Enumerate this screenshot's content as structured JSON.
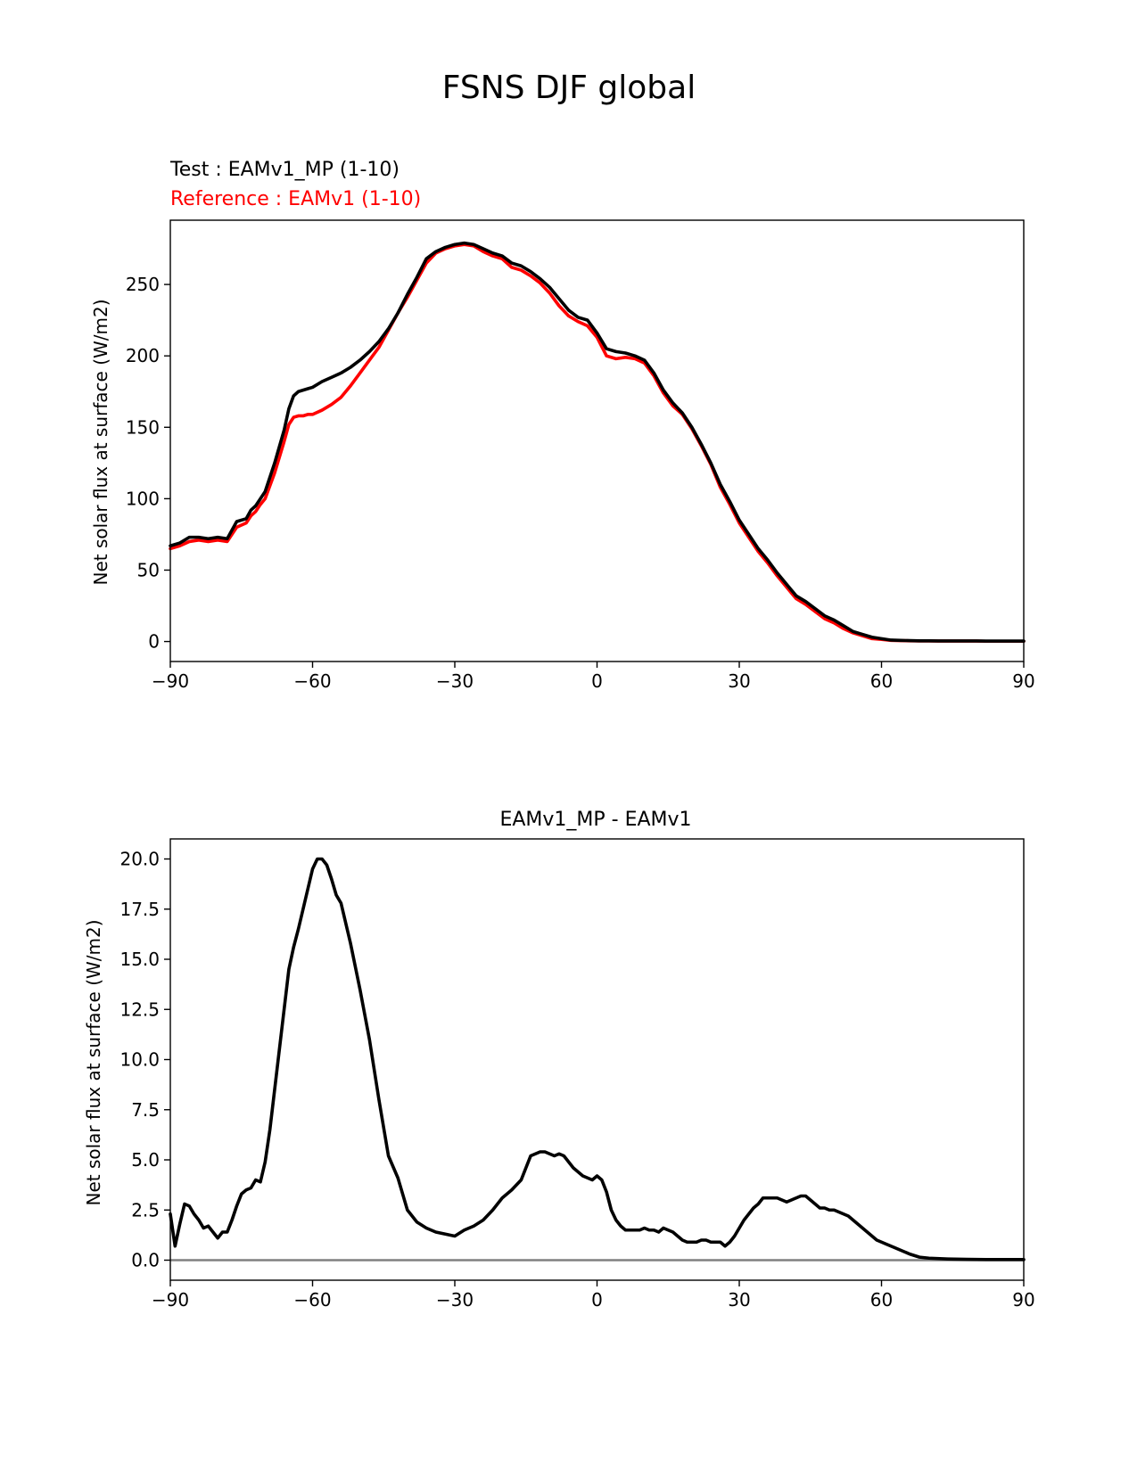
{
  "figure_title": "FSNS DJF global",
  "chart_data": [
    {
      "type": "line",
      "title_test": "Test : EAMv1_MP (1-10)",
      "title_ref": "Reference : EAMv1 (1-10)",
      "xlabel": "",
      "ylabel": "Net solar flux at surface (W/m2)",
      "xlim": [
        -90,
        90
      ],
      "ylim": [
        -14,
        295
      ],
      "xticks": [
        -90,
        -60,
        -30,
        0,
        30,
        60,
        90
      ],
      "xtick_labels": [
        "−90",
        "−60",
        "−30",
        "0",
        "30",
        "60",
        "90"
      ],
      "yticks": [
        0,
        50,
        100,
        150,
        200,
        250
      ],
      "ytick_labels": [
        "0",
        "50",
        "100",
        "150",
        "200",
        "250"
      ],
      "series": [
        {
          "name": "EAMv1_MP",
          "color": "#000000",
          "x": [
            -90,
            -88,
            -86,
            -84,
            -82,
            -80,
            -78,
            -76,
            -74,
            -73,
            -72,
            -71,
            -70,
            -68,
            -66,
            -65,
            -64,
            -63,
            -62,
            -61,
            -60,
            -58,
            -56,
            -54,
            -52,
            -50,
            -48,
            -46,
            -44,
            -42,
            -40,
            -38,
            -36,
            -34,
            -32,
            -30,
            -28,
            -26,
            -24,
            -22,
            -20,
            -18,
            -16,
            -14,
            -12,
            -10,
            -8,
            -6,
            -4,
            -2,
            0,
            2,
            4,
            6,
            8,
            10,
            12,
            14,
            16,
            18,
            20,
            22,
            24,
            26,
            28,
            30,
            32,
            34,
            36,
            38,
            40,
            42,
            44,
            46,
            48,
            50,
            52,
            54,
            56,
            58,
            60,
            62,
            64,
            66,
            68,
            70,
            72,
            74,
            76,
            78,
            80,
            82,
            84,
            86,
            88,
            90
          ],
          "y": [
            67,
            69,
            73,
            73,
            72,
            73,
            72,
            84,
            86,
            92,
            95,
            100,
            105,
            125,
            148,
            163,
            172,
            175,
            176,
            177,
            178,
            182,
            185,
            188,
            192,
            197,
            203,
            210,
            219,
            230,
            243,
            255,
            268,
            273,
            276,
            278,
            279,
            278,
            275,
            272,
            270,
            265,
            263,
            259,
            254,
            248,
            240,
            232,
            227,
            225,
            216,
            205,
            203,
            202,
            200,
            197,
            188,
            176,
            167,
            160,
            150,
            138,
            125,
            110,
            98,
            85,
            75,
            65,
            57,
            48,
            40,
            32,
            28,
            23,
            18,
            15,
            11,
            7,
            5,
            3,
            2,
            1,
            0.8,
            0.6,
            0.5,
            0.5,
            0.4,
            0.4,
            0.4,
            0.4,
            0.4,
            0.3,
            0.3,
            0.3,
            0.3,
            0.3
          ]
        },
        {
          "name": "EAMv1",
          "color": "#ff0000",
          "x": [
            -90,
            -88,
            -86,
            -84,
            -82,
            -80,
            -78,
            -76,
            -74,
            -73,
            -72,
            -71,
            -70,
            -68,
            -66,
            -65,
            -64,
            -63,
            -62,
            -61,
            -60,
            -58,
            -56,
            -54,
            -52,
            -50,
            -48,
            -46,
            -44,
            -42,
            -40,
            -38,
            -36,
            -34,
            -32,
            -30,
            -28,
            -26,
            -24,
            -22,
            -20,
            -18,
            -16,
            -14,
            -12,
            -10,
            -8,
            -6,
            -4,
            -2,
            0,
            2,
            4,
            6,
            8,
            10,
            12,
            14,
            16,
            18,
            20,
            22,
            24,
            26,
            28,
            30,
            32,
            34,
            36,
            38,
            40,
            42,
            44,
            46,
            48,
            50,
            52,
            54,
            56,
            58,
            60,
            62,
            64,
            66,
            68,
            70,
            72,
            74,
            76,
            78,
            80,
            82,
            84,
            86,
            88,
            90
          ],
          "y": [
            65,
            67,
            70,
            71,
            70,
            71,
            70,
            80,
            83,
            88,
            91,
            96,
            100,
            118,
            140,
            152,
            157,
            158,
            158,
            159,
            159,
            162,
            166,
            171,
            179,
            188,
            197,
            206,
            218,
            230,
            241,
            253,
            265,
            272,
            275,
            277,
            278,
            277,
            273,
            270,
            268,
            262,
            260,
            256,
            251,
            244,
            235,
            228,
            224,
            221,
            213,
            200,
            198,
            199,
            198,
            195,
            186,
            174,
            165,
            159,
            149,
            137,
            124,
            108,
            96,
            83,
            73,
            63,
            55,
            46,
            38,
            30,
            26,
            21,
            16,
            13,
            9,
            6,
            4,
            2,
            1.5,
            0.8,
            0.6,
            0.5,
            0.4,
            0.4,
            0.3,
            0.3,
            0.3,
            0.3,
            0.3,
            0.2,
            0.2,
            0.2,
            0.2,
            0.2
          ]
        }
      ]
    },
    {
      "type": "line",
      "title": "EAMv1_MP - EAMv1",
      "xlabel": "",
      "ylabel": "Net solar flux at surface (W/m2)",
      "xlim": [
        -90,
        90
      ],
      "ylim": [
        -1,
        21
      ],
      "xticks": [
        -90,
        -60,
        -30,
        0,
        30,
        60,
        90
      ],
      "xtick_labels": [
        "−90",
        "−60",
        "−30",
        "0",
        "30",
        "60",
        "90"
      ],
      "yticks": [
        0,
        2.5,
        5,
        7.5,
        10,
        12.5,
        15,
        17.5,
        20
      ],
      "ytick_labels": [
        "0.0",
        "2.5",
        "5.0",
        "7.5",
        "10.0",
        "12.5",
        "15.0",
        "17.5",
        "20.0"
      ],
      "zero_line": {
        "y": 0,
        "color": "#808080"
      },
      "series": [
        {
          "name": "EAMv1_MP - EAMv1",
          "color": "#000000",
          "x": [
            -90,
            -89,
            -88,
            -87,
            -86,
            -85,
            -84,
            -83,
            -82,
            -81,
            -80,
            -79,
            -78,
            -77,
            -76,
            -75,
            -74,
            -73,
            -72,
            -71,
            -70,
            -69,
            -68,
            -67,
            -66,
            -65,
            -64,
            -63,
            -62,
            -61,
            -60,
            -59,
            -58,
            -57,
            -56,
            -55,
            -54,
            -52,
            -50,
            -48,
            -46,
            -44,
            -42,
            -40,
            -38,
            -36,
            -34,
            -32,
            -30,
            -28,
            -26,
            -24,
            -22,
            -20,
            -18,
            -16,
            -14,
            -12,
            -11,
            -10,
            -9,
            -8,
            -7,
            -6,
            -5,
            -4,
            -3,
            -2,
            -1,
            0,
            1,
            2,
            3,
            4,
            5,
            6,
            7,
            8,
            9,
            10,
            11,
            12,
            13,
            14,
            15,
            16,
            17,
            18,
            19,
            20,
            21,
            22,
            23,
            24,
            25,
            26,
            27,
            28,
            29,
            30,
            31,
            32,
            33,
            34,
            35,
            36,
            37,
            38,
            39,
            40,
            41,
            42,
            43,
            44,
            45,
            46,
            47,
            48,
            49,
            50,
            51,
            52,
            53,
            54,
            55,
            56,
            57,
            58,
            59,
            60,
            62,
            64,
            66,
            68,
            70,
            74,
            78,
            82,
            86,
            90
          ],
          "y": [
            2.3,
            0.7,
            1.8,
            2.8,
            2.7,
            2.3,
            2.0,
            1.6,
            1.7,
            1.4,
            1.1,
            1.4,
            1.4,
            2.0,
            2.7,
            3.3,
            3.5,
            3.6,
            4.0,
            3.9,
            4.9,
            6.5,
            8.5,
            10.5,
            12.5,
            14.5,
            15.6,
            16.5,
            17.5,
            18.5,
            19.5,
            20.0,
            20.0,
            19.7,
            19.0,
            18.2,
            17.8,
            15.8,
            13.5,
            11.0,
            8.0,
            5.2,
            4.1,
            2.5,
            1.9,
            1.6,
            1.4,
            1.3,
            1.2,
            1.5,
            1.7,
            2.0,
            2.5,
            3.1,
            3.5,
            4.0,
            5.2,
            5.4,
            5.4,
            5.3,
            5.2,
            5.3,
            5.2,
            4.9,
            4.6,
            4.4,
            4.2,
            4.1,
            4.0,
            4.2,
            4.0,
            3.4,
            2.5,
            2.0,
            1.7,
            1.5,
            1.5,
            1.5,
            1.5,
            1.6,
            1.5,
            1.5,
            1.4,
            1.6,
            1.5,
            1.4,
            1.2,
            1.0,
            0.9,
            0.9,
            0.9,
            1.0,
            1.0,
            0.9,
            0.9,
            0.9,
            0.7,
            0.9,
            1.2,
            1.6,
            2.0,
            2.3,
            2.6,
            2.8,
            3.1,
            3.1,
            3.1,
            3.1,
            3.0,
            2.9,
            3.0,
            3.1,
            3.2,
            3.2,
            3.0,
            2.8,
            2.6,
            2.6,
            2.5,
            2.5,
            2.4,
            2.3,
            2.2,
            2.0,
            1.8,
            1.6,
            1.4,
            1.2,
            1.0,
            0.9,
            0.7,
            0.5,
            0.3,
            0.15,
            0.1,
            0.06,
            0.04,
            0.03,
            0.03,
            0.03
          ]
        }
      ]
    }
  ]
}
